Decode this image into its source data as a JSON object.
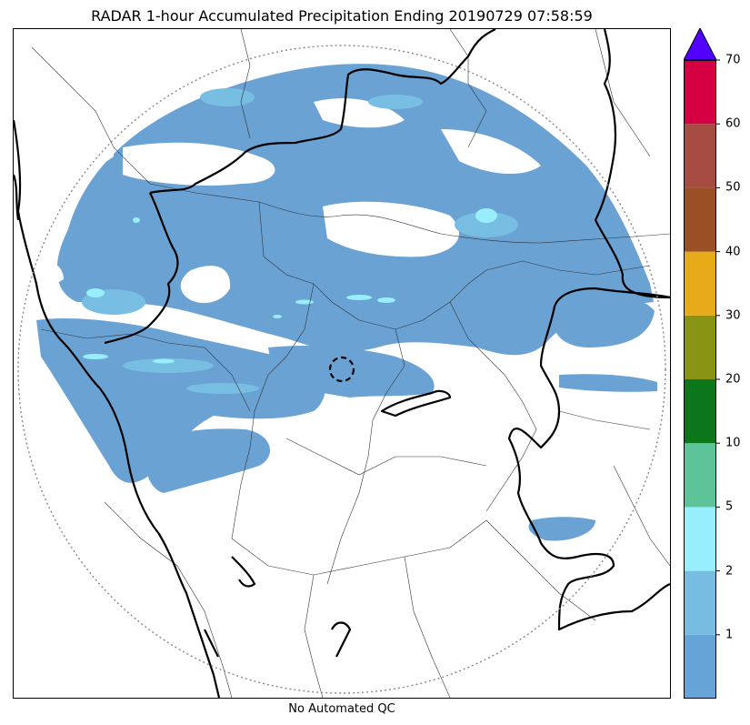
{
  "title": "RADAR 1-hour Accumulated Precipitation Ending 20190729 07:58:59",
  "caption": "No Automated QC",
  "colors": {
    "rain_light": "#6aa2d4",
    "rain_mid": "#78bee3",
    "rain_heavy": "#98eefa",
    "range_ring": "#888888",
    "state_border": "#000000",
    "district_border": "#333333"
  },
  "colorbar": {
    "extend_max_color": "#5200ff",
    "bins": [
      {
        "color": "#66a3d6"
      },
      {
        "color": "#77bde2"
      },
      {
        "color": "#97eefc"
      },
      {
        "color": "#5dc49a"
      },
      {
        "color": "#0c761b"
      },
      {
        "color": "#899414"
      },
      {
        "color": "#e7ab1a"
      },
      {
        "color": "#9a4f25"
      },
      {
        "color": "#a64c43"
      },
      {
        "color": "#d50041"
      }
    ],
    "tick_labels": [
      "1",
      "2",
      "5",
      "10",
      "20",
      "30",
      "40",
      "50",
      "60",
      "70"
    ]
  }
}
